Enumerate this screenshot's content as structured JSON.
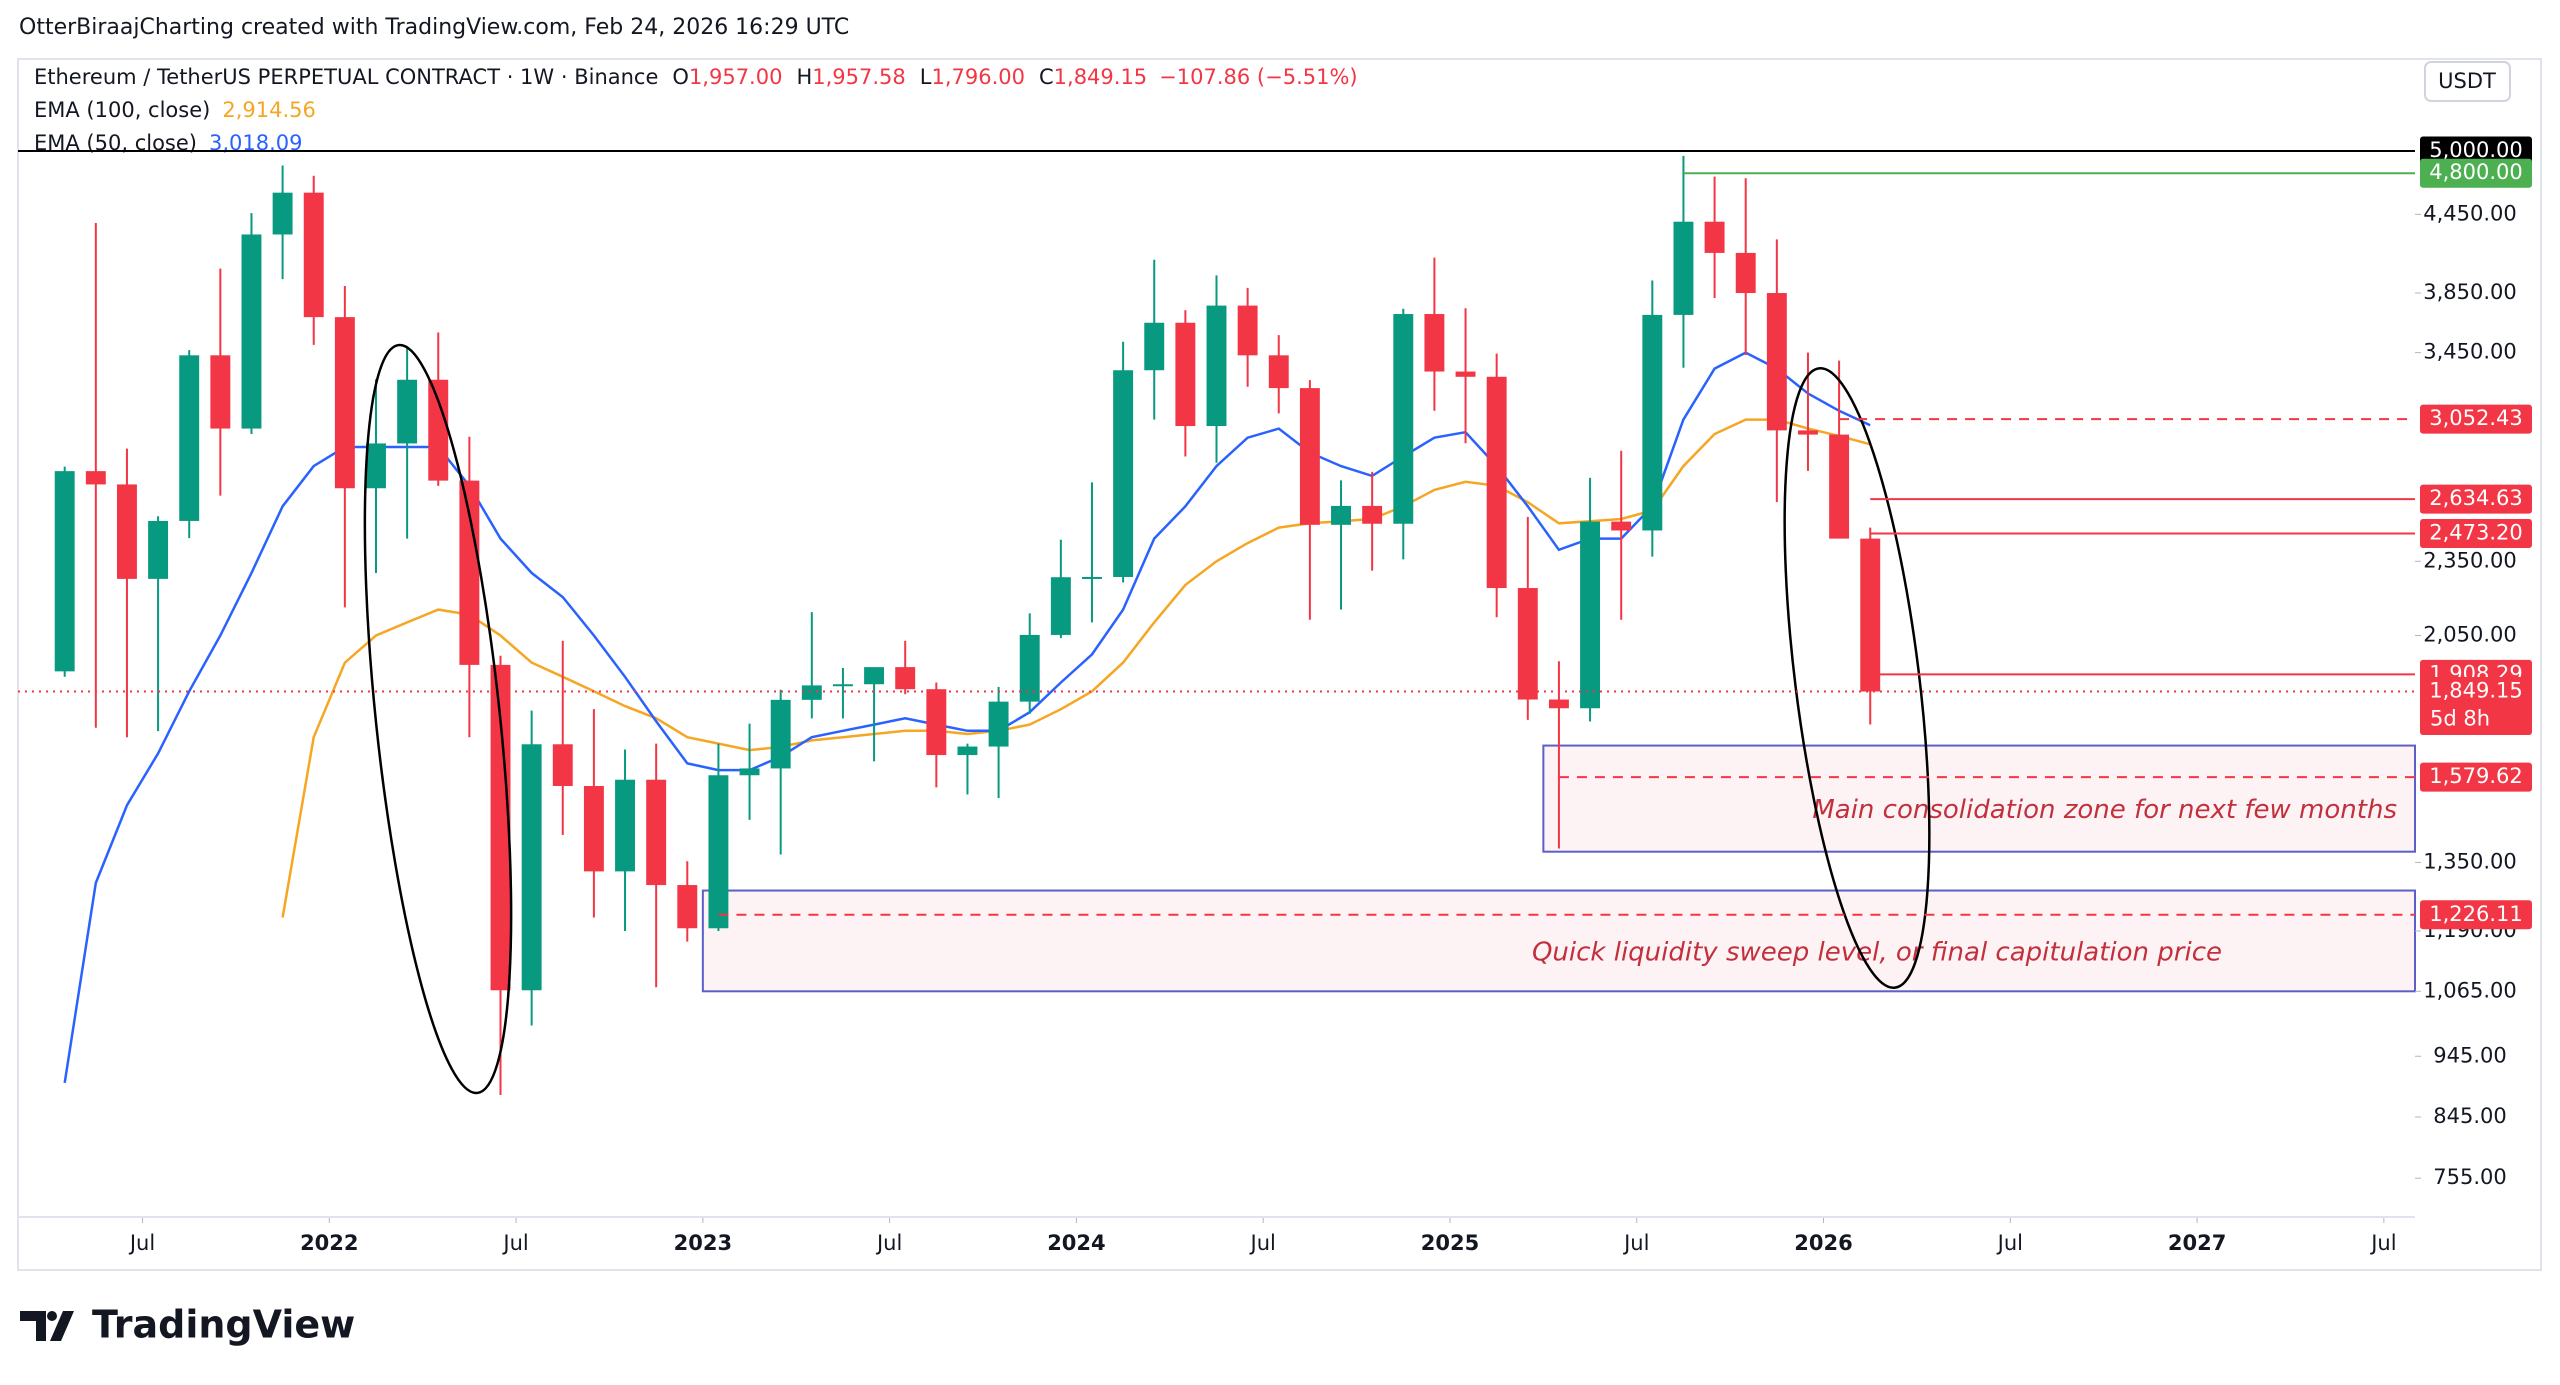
{
  "header": "OtterBiraajCharting created with TradingView.com, Feb 24, 2026 16:29 UTC",
  "currency_button": "USDT",
  "brand": "TradingView",
  "chart_data": {
    "type": "candlestick",
    "legend": {
      "symbol": "Ethereum / TetherUS PERPETUAL CONTRACT · 1W · Binance",
      "fields": [
        {
          "key": "O",
          "value": "1,957.00"
        },
        {
          "key": "H",
          "value": "1,957.58"
        },
        {
          "key": "L",
          "value": "1,796.00"
        },
        {
          "key": "C",
          "value": "1,849.15"
        }
      ],
      "change": "−107.86 (−5.51%)"
    },
    "log_scale": true,
    "up_color": "#089981",
    "down_color": "#f23645",
    "x": [
      "2021-04",
      "2021-05",
      "2021-06",
      "2021-07",
      "2021-08",
      "2021-09",
      "2021-10",
      "2021-11",
      "2021-12",
      "2022-01",
      "2022-02",
      "2022-03",
      "2022-04",
      "2022-05",
      "2022-06",
      "2022-07",
      "2022-08",
      "2022-09",
      "2022-10",
      "2022-11",
      "2022-12",
      "2023-01",
      "2023-02",
      "2023-03",
      "2023-04",
      "2023-05",
      "2023-06",
      "2023-07",
      "2023-08",
      "2023-09",
      "2023-10",
      "2023-11",
      "2023-12",
      "2024-01",
      "2024-02",
      "2024-03",
      "2024-04",
      "2024-05",
      "2024-06",
      "2024-07",
      "2024-08",
      "2024-09",
      "2024-10",
      "2024-11",
      "2024-12",
      "2025-01",
      "2025-02",
      "2025-03",
      "2025-04",
      "2025-05",
      "2025-06",
      "2025-07",
      "2025-08",
      "2025-09",
      "2025-10",
      "2025-11",
      "2025-12",
      "2026-01",
      "2026-02"
    ],
    "ohlc": {
      "open": [
        1919,
        2774,
        2707,
        2275,
        2531,
        3433,
        3000,
        4288,
        4631,
        3683,
        2688,
        2919,
        3282,
        2726,
        1942,
        1067,
        1678,
        1554,
        1328,
        1572,
        1295,
        1196,
        1585,
        1605,
        1821,
        1870,
        1874,
        1934,
        1857,
        1645,
        1671,
        1815,
        2052,
        2282,
        2283,
        3340,
        3645,
        3014,
        3762,
        3433,
        3232,
        2513,
        2602,
        2518,
        3704,
        3332,
        3300,
        2237,
        1822,
        1793,
        2528,
        2487,
        3698,
        4390,
        4145,
        3850,
        2990,
        2967,
        2450
      ],
      "high": [
        2797,
        4380,
        2891,
        2553,
        3466,
        4027,
        4460,
        4868,
        4778,
        3900,
        3285,
        3483,
        3580,
        2955,
        1975,
        1785,
        2030,
        1790,
        1662,
        1680,
        1353,
        1680,
        1743,
        1855,
        2140,
        1931,
        1930,
        2030,
        1880,
        1680,
        1865,
        2135,
        2445,
        2717,
        3520,
        4093,
        3730,
        3977,
        3887,
        3563,
        3280,
        2727,
        2770,
        3740,
        4109,
        3744,
        3444,
        2550,
        1955,
        2740,
        2880,
        3940,
        4956,
        4770,
        4755,
        4250,
        3450,
        3400,
        2500
      ],
      "low": [
        1900,
        1730,
        1700,
        1719,
        2452,
        2652,
        2970,
        3950,
        3500,
        2159,
        2300,
        2450,
        2700,
        1700,
        880,
        1000,
        1420,
        1220,
        1190,
        1073,
        1167,
        1190,
        1460,
        1370,
        1760,
        1760,
        1626,
        1840,
        1550,
        1530,
        1520,
        1775,
        2040,
        2100,
        2260,
        3050,
        2850,
        2817,
        3240,
        3085,
        2110,
        2150,
        2310,
        2358,
        3100,
        2920,
        2120,
        1755,
        1385,
        1750,
        2110,
        2370,
        3355,
        3815,
        3435,
        2620,
        2775,
        2700,
        1740
      ],
      "close": [
        2774,
        2707,
        2275,
        2531,
        3433,
        3000,
        4288,
        4631,
        3683,
        2688,
        2919,
        3282,
        2726,
        1942,
        1067,
        1678,
        1554,
        1328,
        1572,
        1295,
        1196,
        1585,
        1605,
        1821,
        1870,
        1874,
        1934,
        1857,
        1645,
        1671,
        1815,
        2052,
        2282,
        2283,
        3340,
        3645,
        3014,
        3762,
        3433,
        3232,
        2513,
        2602,
        2518,
        3704,
        3332,
        3300,
        2237,
        1822,
        1793,
        2528,
        2487,
        3698,
        4390,
        4145,
        3850,
        2990,
        2967,
        2450,
        1849.15
      ]
    },
    "series": [
      {
        "name": "EMA (100, close)",
        "color": "#f5a623",
        "value_label": "2,914.56",
        "values": [
          null,
          null,
          null,
          null,
          null,
          null,
          null,
          1220,
          1700,
          1950,
          2050,
          2100,
          2150,
          2130,
          2050,
          1950,
          1900,
          1850,
          1800,
          1760,
          1700,
          1680,
          1660,
          1670,
          1690,
          1700,
          1710,
          1720,
          1720,
          1710,
          1720,
          1740,
          1790,
          1850,
          1950,
          2100,
          2250,
          2350,
          2430,
          2500,
          2520,
          2530,
          2540,
          2600,
          2680,
          2720,
          2700,
          2620,
          2520,
          2530,
          2540,
          2580,
          2800,
          2970,
          3050,
          3050,
          3000,
          2960,
          2914.56
        ]
      },
      {
        "name": "EMA (50, close)",
        "color": "#2962ff",
        "value_label": "3,018.09",
        "values": [
          900,
          1300,
          1500,
          1650,
          1850,
          2050,
          2300,
          2600,
          2800,
          2900,
          2900,
          2900,
          2900,
          2700,
          2450,
          2300,
          2200,
          2050,
          1900,
          1750,
          1620,
          1600,
          1600,
          1640,
          1700,
          1720,
          1740,
          1760,
          1740,
          1720,
          1720,
          1780,
          1880,
          1980,
          2150,
          2450,
          2600,
          2800,
          2950,
          3000,
          2870,
          2800,
          2750,
          2850,
          2950,
          2980,
          2800,
          2600,
          2400,
          2450,
          2450,
          2600,
          3050,
          3350,
          3450,
          3350,
          3200,
          3100,
          3018.09
        ]
      }
    ],
    "xlim": [
      "2021-03",
      "2027-08"
    ],
    "xticks": [
      {
        "value": "2021-07",
        "label": "Jul"
      },
      {
        "value": "2022-01",
        "label": "2022"
      },
      {
        "value": "2022-07",
        "label": "Jul"
      },
      {
        "value": "2023-01",
        "label": "2023"
      },
      {
        "value": "2023-07",
        "label": "Jul"
      },
      {
        "value": "2024-01",
        "label": "2024"
      },
      {
        "value": "2024-07",
        "label": "Jul"
      },
      {
        "value": "2025-01",
        "label": "2025"
      },
      {
        "value": "2025-07",
        "label": "Jul"
      },
      {
        "value": "2026-01",
        "label": "2026"
      },
      {
        "value": "2026-07",
        "label": "Jul"
      },
      {
        "value": "2027-01",
        "label": "2027"
      },
      {
        "value": "2027-07",
        "label": "Jul"
      }
    ],
    "ylim": [
      703,
      5890
    ],
    "yticks": [
      {
        "value": 4450,
        "label": "4,450.00"
      },
      {
        "value": 3850,
        "label": "3,850.00"
      },
      {
        "value": 3450,
        "label": "3,450.00"
      },
      {
        "value": 2350,
        "label": "2,350.00"
      },
      {
        "value": 2050,
        "label": "2,050.00"
      },
      {
        "value": 1350,
        "label": "1,350.00"
      },
      {
        "value": 1190,
        "label": "1,190.00"
      },
      {
        "value": 1065,
        "label": "1,065.00"
      },
      {
        "value": 945,
        "label": "945.00"
      },
      {
        "value": 845,
        "label": "845.00"
      },
      {
        "value": 755,
        "label": "755.00"
      }
    ],
    "price_lines": [
      {
        "value": 5000,
        "label": "5,000.00",
        "color": "#000000",
        "style": "solid",
        "from": null
      },
      {
        "value": 4800,
        "label": "4,800.00",
        "color": "#4caf50",
        "style": "solid",
        "from": "2025-08"
      },
      {
        "value": 3052.43,
        "label": "3,052.43",
        "color": "#f23645",
        "style": "dashed",
        "from": "2026-01"
      },
      {
        "value": 2634.63,
        "label": "2,634.63",
        "color": "#f23645",
        "style": "solid",
        "from": "2026-02"
      },
      {
        "value": 2473.2,
        "label": "2,473.20",
        "color": "#f23645",
        "style": "solid",
        "from": "2026-02"
      },
      {
        "value": 1908.29,
        "label": "1,908.29",
        "color": "#f23645",
        "style": "solid",
        "from": "2026-02"
      },
      {
        "value": 1849.15,
        "label": "1,849.15",
        "color": "#f23645",
        "style": "dotted",
        "from": null,
        "countdown": "5d 8h"
      },
      {
        "value": 1579.62,
        "label": "1,579.62",
        "color": "#f23645",
        "style": "dashed",
        "from": "2025-04"
      },
      {
        "value": 1226.11,
        "label": "1,226.11",
        "color": "#f23645",
        "style": "dashed",
        "from": "2023-01"
      }
    ],
    "zones": [
      {
        "from": "2025-04",
        "top": 1674,
        "bottom": 1377,
        "label": "Main consolidation zone for next few months"
      },
      {
        "from": "2023-01",
        "top": 1282,
        "bottom": 1065,
        "label": "Quick liquidity sweep level, or final capitulation price"
      }
    ]
  }
}
